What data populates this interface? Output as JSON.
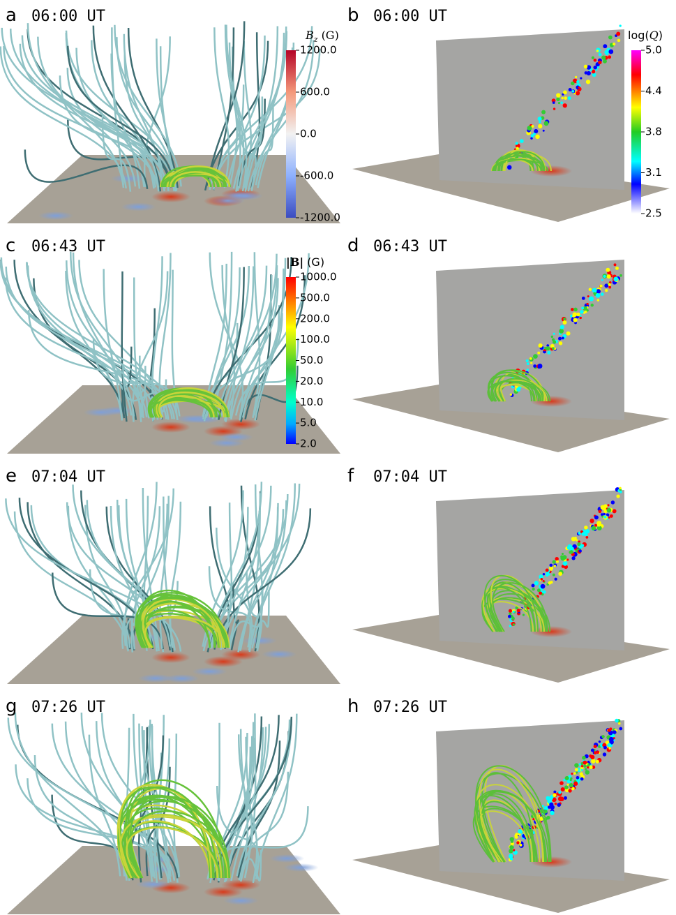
{
  "panels": [
    {
      "letter": "a",
      "time": "06:00 UT"
    },
    {
      "letter": "b",
      "time": "06:00 UT"
    },
    {
      "letter": "c",
      "time": "06:43 UT"
    },
    {
      "letter": "d",
      "time": "06:43 UT"
    },
    {
      "letter": "e",
      "time": "07:04 UT"
    },
    {
      "letter": "f",
      "time": "07:04 UT"
    },
    {
      "letter": "g",
      "time": "07:26 UT"
    },
    {
      "letter": "h",
      "time": "07:26 UT"
    }
  ],
  "colorbars": {
    "bz": {
      "symbol": "B",
      "subscript": "z",
      "unit": "(G)",
      "ticks": [
        "1200.0",
        "600.0",
        "0.0",
        "-600.0",
        "-1200.0"
      ]
    },
    "logq": {
      "prefix": "log(",
      "symbol": "Q",
      "suffix": ")",
      "ticks": [
        "5.0",
        "4.4",
        "3.8",
        "3.1",
        "2.5"
      ]
    },
    "b": {
      "symbol": "|B|",
      "unit": "(G)",
      "ticks": [
        "1000.0",
        "500.0",
        "200.0",
        "100.0",
        "50.0",
        "20.0",
        "10.0",
        "5.0",
        "2.0"
      ]
    }
  }
}
